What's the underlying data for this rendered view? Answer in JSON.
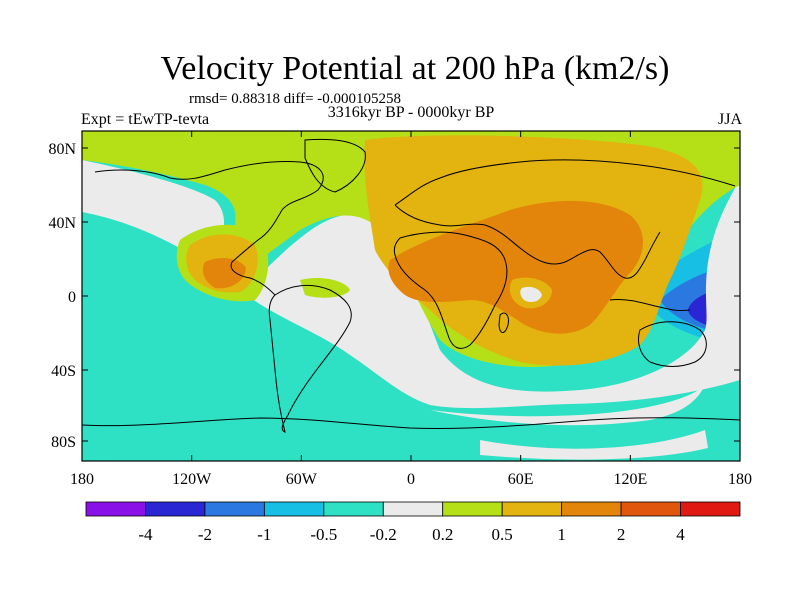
{
  "title": "Velocity Potential at 200 hPa (km2/s)",
  "stats_text": "rmsd= 0.88318 diff= -0.000105258",
  "experiment": "Expt = tEwTP-tevta",
  "period": "3316kyr BP - 0000kyr BP",
  "season": "JJA",
  "lat_ticks": [
    "80N",
    "40N",
    "0",
    "40S",
    "80S"
  ],
  "lon_ticks": [
    "180",
    "120W",
    "60W",
    "0",
    "60E",
    "120E",
    "180"
  ],
  "colorbar": {
    "colors": [
      "#8a10e8",
      "#2a26d4",
      "#2a78e0",
      "#16bfe3",
      "#2ee0c4",
      "#ebebeb",
      "#b5e018",
      "#e3b30f",
      "#e3850b",
      "#e0560c",
      "#e01a12"
    ],
    "labels": [
      "-4",
      "-2",
      "-1",
      "-0.5",
      "-0.2",
      "0.2",
      "0.5",
      "1",
      "2",
      "4"
    ]
  }
}
